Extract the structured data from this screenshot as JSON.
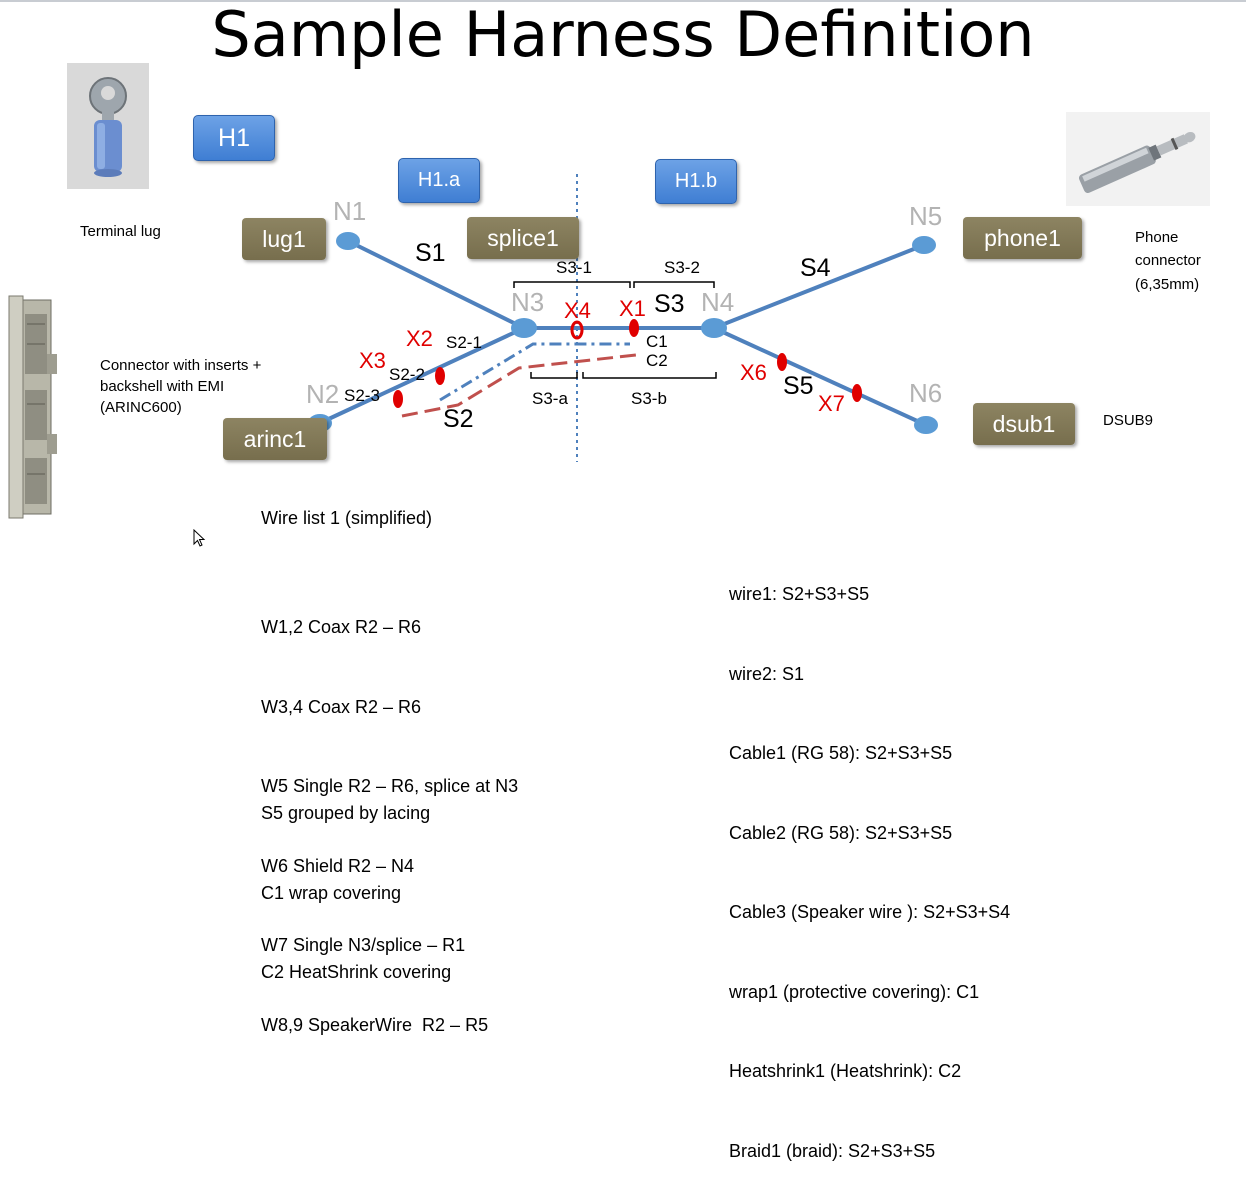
{
  "title": "Sample Harness Definition",
  "harness_boxes": {
    "h1": "H1",
    "h1a": "H1.a",
    "h1b": "H1.b"
  },
  "components": {
    "lug1": "lug1",
    "splice1": "splice1",
    "phone1": "phone1",
    "arinc1": "arinc1",
    "dsub1": "dsub1"
  },
  "nodes": {
    "n1": "N1",
    "n2": "N2",
    "n3": "N3",
    "n4": "N4",
    "n5": "N5",
    "n6": "N6"
  },
  "segments": {
    "s1": "S1",
    "s2": "S2",
    "s3": "S3",
    "s4": "S4",
    "s5": "S5"
  },
  "sub_segments": {
    "s2_1": "S2-1",
    "s2_2": "S2-2",
    "s2_3": "S2-3",
    "s3_1": "S3-1",
    "s3_2": "S3-2",
    "s3_a": "S3-a",
    "s3_b": "S3-b",
    "c1": "C1",
    "c2": "C2"
  },
  "cut_points": {
    "x1": "X1",
    "x2": "X2",
    "x3": "X3",
    "x4": "X4",
    "x6": "X6",
    "x7": "X7"
  },
  "annotations": {
    "terminal_lug": "Terminal lug",
    "connector_inserts": [
      "Connector with inserts +",
      "backshell with EMI",
      "(ARINC600)"
    ],
    "phone_connector": [
      "Phone",
      "connector",
      "(6,35mm)"
    ],
    "dsub9": "DSUB9"
  },
  "wire_list": {
    "heading": "Wire list 1  (simplified)",
    "items": [
      "W1,2 Coax R2 – R6",
      "W3,4 Coax R2 – R6",
      "W5 Single R2 – R6, splice at N3",
      "W6 Shield R2 – N4",
      "W7 Single N3/splice – R1",
      "W8,9 SpeakerWire  R2 – R5"
    ],
    "notes": [
      "S5 grouped by lacing",
      "C1 wrap covering",
      "C2 HeatShrink covering"
    ]
  },
  "definitions": [
    "wire1: S2+S3+S5",
    "wire2: S1",
    "Cable1 (RG 58): S2+S3+S5",
    "Cable2 (RG 58): S2+S3+S5",
    "Cable3 (Speaker wire ): S2+S3+S4",
    "wrap1 (protective covering): C1",
    "Heatshrink1 (Heatshrink): C2",
    "Braid1 (braid): S2+S3+S5"
  ],
  "colors": {
    "segment_line": "#4f81bd",
    "node_fill": "#5b9bd5",
    "cut_red": "#e00000",
    "covering_red": "#c0504d",
    "harness_box": "#4a86d8",
    "component_box": "#7f7652"
  }
}
